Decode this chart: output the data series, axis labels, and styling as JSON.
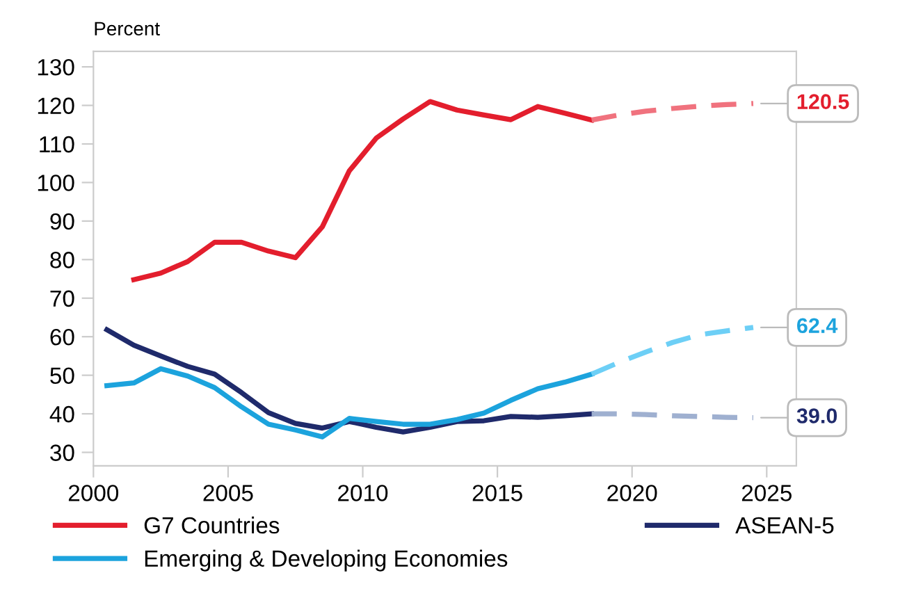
{
  "chart_data": {
    "type": "line",
    "ylabel": "Percent",
    "xlim": [
      2000,
      2026.1
    ],
    "ylim": [
      26.5,
      134
    ],
    "xticks": [
      2000,
      2005,
      2010,
      2015,
      2020,
      2025
    ],
    "yticks": [
      30,
      40,
      50,
      60,
      70,
      80,
      90,
      100,
      110,
      120,
      130
    ],
    "grid": false,
    "legend": "bottom",
    "marker": "none",
    "series": [
      {
        "name": "G7 Countries",
        "color": "#e31e2d",
        "line_style": "solid",
        "x": [
          2001.5,
          2002.5,
          2003.5,
          2004.5,
          2005.5,
          2006.5,
          2007.5,
          2008.5,
          2009.5,
          2010.5,
          2011.5,
          2012.5,
          2013.5,
          2014.5,
          2015.5,
          2016.5,
          2017.5,
          2018.5
        ],
        "values": [
          74.8,
          76.5,
          79.5,
          84.5,
          84.5,
          82.2,
          80.5,
          88.5,
          103,
          111.5,
          116.5,
          121,
          118.8,
          117.5,
          116.3,
          119.7,
          118,
          116.2
        ]
      },
      {
        "color": "#f0727e",
        "line_style": "dashed",
        "x": [
          2018.5,
          2019.5,
          2020.5,
          2021.5,
          2022.5,
          2023.5,
          2024.5
        ],
        "values": [
          116.2,
          117.5,
          118.5,
          119.2,
          119.8,
          120.2,
          120.5
        ],
        "value_labels": [
          null,
          null,
          null,
          null,
          null,
          null,
          "120.5"
        ]
      },
      {
        "name": "ASEAN-5",
        "color": "#1f2a6b",
        "line_style": "solid",
        "x": [
          2000.5,
          2001.5,
          2002.5,
          2003.5,
          2004.5,
          2005.5,
          2006.5,
          2007.5,
          2008.5,
          2009.5,
          2010.5,
          2011.5,
          2012.5,
          2013.5,
          2014.5,
          2015.5,
          2016.5,
          2017.5,
          2018.5
        ],
        "values": [
          61.8,
          57.8,
          55,
          52.3,
          50.3,
          45.5,
          40.3,
          37.5,
          36.3,
          38,
          36.5,
          35.3,
          36.5,
          38,
          38.2,
          39.3,
          39.1,
          39.5,
          40
        ]
      },
      {
        "color": "#9fb0d0",
        "line_style": "dashed",
        "x": [
          2018.5,
          2019.5,
          2020.5,
          2021.5,
          2022.5,
          2023.5,
          2024.5
        ],
        "values": [
          40,
          40,
          39.8,
          39.5,
          39.3,
          39.1,
          39.0
        ],
        "value_labels": [
          null,
          null,
          null,
          null,
          null,
          null,
          "39.0"
        ]
      },
      {
        "name": "Emerging & Developing Economies",
        "color": "#1ca3dd",
        "line_style": "solid",
        "x": [
          2000.5,
          2001.5,
          2002.5,
          2003.5,
          2004.5,
          2005.5,
          2006.5,
          2007.5,
          2008.5,
          2009.5,
          2010.5,
          2011.5,
          2012.5,
          2013.5,
          2014.5,
          2015.5,
          2016.5,
          2017.5,
          2018.5
        ],
        "values": [
          47.3,
          48,
          51.7,
          49.8,
          46.8,
          41.8,
          37.3,
          35.8,
          34,
          38.8,
          38,
          37.3,
          37.3,
          38.5,
          40.2,
          43.5,
          46.5,
          48.2,
          50.3
        ]
      },
      {
        "color": "#6dcff6",
        "line_style": "dashed",
        "x": [
          2018.5,
          2019.5,
          2020.5,
          2021.5,
          2022.5,
          2023.5,
          2024.5
        ],
        "values": [
          50.3,
          53.3,
          56,
          58.5,
          60.5,
          61.5,
          62.4
        ],
        "value_labels": [
          null,
          null,
          null,
          null,
          null,
          null,
          "62.4"
        ]
      }
    ]
  }
}
